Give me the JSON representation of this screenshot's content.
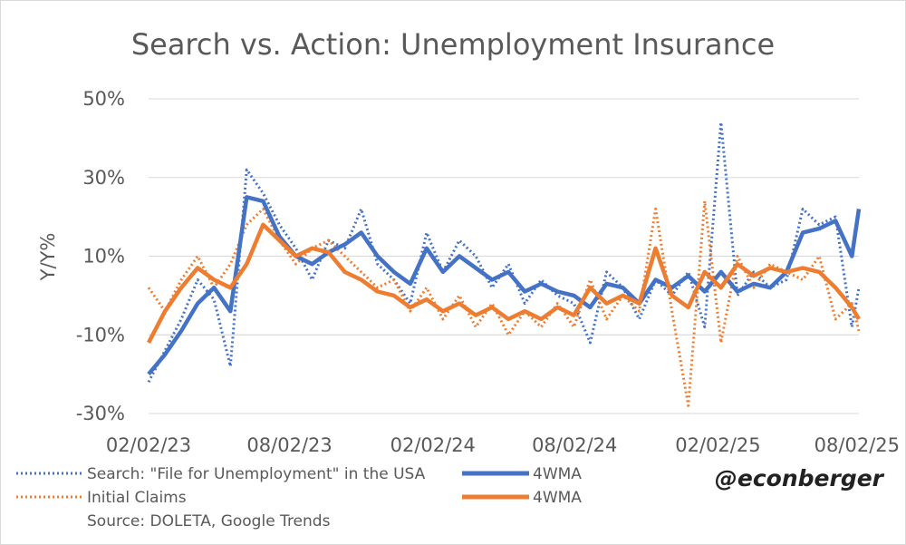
{
  "chart_data": {
    "type": "line",
    "title": "Search vs. Action: Unemployment Insurance",
    "ylabel": "Y/Y%",
    "xlabel": "",
    "ylim": [
      -30,
      50
    ],
    "yticks": [
      50,
      30,
      10,
      -10,
      -30
    ],
    "ytick_labels": [
      "50%",
      "30%",
      "10%",
      "-10%",
      "-30%"
    ],
    "xlim": [
      "2023-02-02",
      "2025-08-02"
    ],
    "xticks": [
      "2023-02-02",
      "2023-08-02",
      "2024-02-02",
      "2024-08-02",
      "2025-02-02",
      "2025-08-02"
    ],
    "xtick_labels": [
      "02/02/23",
      "08/02/23",
      "02/02/24",
      "08/02/24",
      "02/02/25",
      "08/02/25"
    ],
    "grid": true,
    "legend_position": "bottom",
    "series": [
      {
        "name": "Search: \"File for Unemployment\" in the USA",
        "color": "#4472C4",
        "style": "dotted",
        "x": [
          "2023-02-02",
          "2023-02-23",
          "2023-03-16",
          "2023-04-06",
          "2023-04-27",
          "2023-05-18",
          "2023-06-08",
          "2023-06-29",
          "2023-07-20",
          "2023-08-10",
          "2023-08-31",
          "2023-09-21",
          "2023-10-12",
          "2023-11-02",
          "2023-11-23",
          "2023-12-14",
          "2024-01-04",
          "2024-01-25",
          "2024-02-15",
          "2024-03-07",
          "2024-03-28",
          "2024-04-18",
          "2024-05-09",
          "2024-05-30",
          "2024-06-20",
          "2024-07-11",
          "2024-08-01",
          "2024-08-22",
          "2024-09-12",
          "2024-10-03",
          "2024-10-24",
          "2024-11-14",
          "2024-12-05",
          "2024-12-26",
          "2025-01-16",
          "2025-02-06",
          "2025-02-27",
          "2025-03-20",
          "2025-04-10",
          "2025-05-01",
          "2025-05-22",
          "2025-06-12",
          "2025-07-03",
          "2025-07-24",
          "2025-08-02"
        ],
        "y": [
          -22,
          -14,
          -6,
          4,
          -1,
          -18,
          32,
          26,
          18,
          12,
          4,
          14,
          12,
          22,
          8,
          4,
          -2,
          16,
          6,
          14,
          10,
          2,
          8,
          -2,
          4,
          0,
          -2,
          -12,
          6,
          2,
          -6,
          4,
          0,
          6,
          -8,
          44,
          0,
          6,
          2,
          4,
          22,
          18,
          20,
          -8,
          2
        ]
      },
      {
        "name": "4WMA",
        "color": "#4472C4",
        "style": "solid",
        "x": [
          "2023-02-02",
          "2023-02-23",
          "2023-03-16",
          "2023-04-06",
          "2023-04-27",
          "2023-05-18",
          "2023-06-08",
          "2023-06-29",
          "2023-07-20",
          "2023-08-10",
          "2023-08-31",
          "2023-09-21",
          "2023-10-12",
          "2023-11-02",
          "2023-11-23",
          "2023-12-14",
          "2024-01-04",
          "2024-01-25",
          "2024-02-15",
          "2024-03-07",
          "2024-03-28",
          "2024-04-18",
          "2024-05-09",
          "2024-05-30",
          "2024-06-20",
          "2024-07-11",
          "2024-08-01",
          "2024-08-22",
          "2024-09-12",
          "2024-10-03",
          "2024-10-24",
          "2024-11-14",
          "2024-12-05",
          "2024-12-26",
          "2025-01-16",
          "2025-02-06",
          "2025-02-27",
          "2025-03-20",
          "2025-04-10",
          "2025-05-01",
          "2025-05-22",
          "2025-06-12",
          "2025-07-03",
          "2025-07-24",
          "2025-08-02"
        ],
        "y": [
          -20,
          -15,
          -9,
          -2,
          2,
          -4,
          25,
          24,
          15,
          10,
          8,
          11,
          13,
          16,
          10,
          6,
          3,
          12,
          6,
          10,
          7,
          4,
          6,
          1,
          3,
          1,
          0,
          -3,
          3,
          2,
          -2,
          4,
          2,
          5,
          1,
          6,
          1,
          3,
          2,
          6,
          16,
          17,
          19,
          10,
          22
        ]
      },
      {
        "name": "Initial Claims",
        "color": "#ED7D31",
        "style": "dotted",
        "x": [
          "2023-02-02",
          "2023-02-23",
          "2023-03-16",
          "2023-04-06",
          "2023-04-27",
          "2023-05-18",
          "2023-06-08",
          "2023-06-29",
          "2023-07-20",
          "2023-08-10",
          "2023-08-31",
          "2023-09-21",
          "2023-10-12",
          "2023-11-02",
          "2023-11-23",
          "2023-12-14",
          "2024-01-04",
          "2024-01-25",
          "2024-02-15",
          "2024-03-07",
          "2024-03-28",
          "2024-04-18",
          "2024-05-09",
          "2024-05-30",
          "2024-06-20",
          "2024-07-11",
          "2024-08-01",
          "2024-08-22",
          "2024-09-12",
          "2024-10-03",
          "2024-10-24",
          "2024-11-14",
          "2024-12-05",
          "2024-12-26",
          "2025-01-16",
          "2025-02-06",
          "2025-02-27",
          "2025-03-20",
          "2025-04-10",
          "2025-05-01",
          "2025-05-22",
          "2025-06-12",
          "2025-07-03",
          "2025-07-24",
          "2025-08-02"
        ],
        "y": [
          2,
          -4,
          4,
          10,
          2,
          8,
          18,
          22,
          14,
          8,
          12,
          14,
          10,
          6,
          2,
          4,
          -4,
          2,
          -6,
          0,
          -8,
          -2,
          -10,
          -4,
          -8,
          -2,
          -8,
          4,
          -6,
          0,
          -4,
          22,
          -4,
          -28,
          24,
          -12,
          10,
          2,
          8,
          6,
          4,
          10,
          -6,
          -2,
          -9
        ]
      },
      {
        "name": "4WMA",
        "color": "#ED7D31",
        "style": "solid",
        "x": [
          "2023-02-02",
          "2023-02-23",
          "2023-03-16",
          "2023-04-06",
          "2023-04-27",
          "2023-05-18",
          "2023-06-08",
          "2023-06-29",
          "2023-07-20",
          "2023-08-10",
          "2023-08-31",
          "2023-09-21",
          "2023-10-12",
          "2023-11-02",
          "2023-11-23",
          "2023-12-14",
          "2024-01-04",
          "2024-01-25",
          "2024-02-15",
          "2024-03-07",
          "2024-03-28",
          "2024-04-18",
          "2024-05-09",
          "2024-05-30",
          "2024-06-20",
          "2024-07-11",
          "2024-08-01",
          "2024-08-22",
          "2024-09-12",
          "2024-10-03",
          "2024-10-24",
          "2024-11-14",
          "2024-12-05",
          "2024-12-26",
          "2025-01-16",
          "2025-02-06",
          "2025-02-27",
          "2025-03-20",
          "2025-04-10",
          "2025-05-01",
          "2025-05-22",
          "2025-06-12",
          "2025-07-03",
          "2025-07-24",
          "2025-08-02"
        ],
        "y": [
          -12,
          -4,
          2,
          7,
          4,
          2,
          8,
          18,
          14,
          10,
          12,
          11,
          6,
          4,
          1,
          0,
          -3,
          -1,
          -4,
          -2,
          -5,
          -3,
          -6,
          -4,
          -6,
          -3,
          -5,
          2,
          -2,
          0,
          -2,
          12,
          0,
          -3,
          6,
          2,
          8,
          5,
          7,
          6,
          7,
          6,
          2,
          -3,
          -6
        ]
      }
    ]
  },
  "legend": {
    "items": [
      {
        "label": "Search: \"File for Unemployment\" in the USA",
        "color": "#4472C4",
        "style": "dotted"
      },
      {
        "label": "4WMA",
        "color": "#4472C4",
        "style": "solid"
      },
      {
        "label": "Initial Claims",
        "color": "#ED7D31",
        "style": "dotted"
      },
      {
        "label": "4WMA",
        "color": "#ED7D31",
        "style": "solid"
      }
    ]
  },
  "source": "Source: DOLETA, Google Trends",
  "credit": "@econberger"
}
